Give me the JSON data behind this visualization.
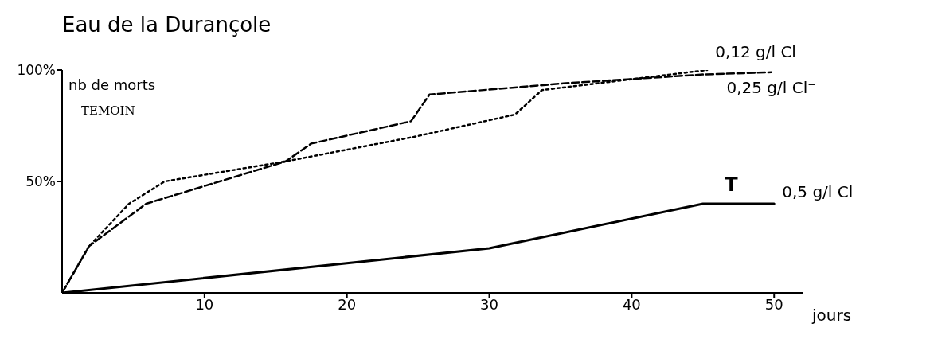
{
  "chart_data": {
    "type": "line",
    "title": "Eau de la Durançole",
    "xlabel": "jours",
    "ylabel": "nb de morts",
    "annotations": [
      "TEMOIN",
      "T"
    ],
    "xlim": [
      0,
      52
    ],
    "xticks": [
      10,
      20,
      30,
      40,
      50
    ],
    "ylim": [
      0,
      100
    ],
    "yticks": [
      {
        "value": 50,
        "label": "50%"
      },
      {
        "value": 100,
        "label": "100%"
      }
    ],
    "marker": "none",
    "series": [
      {
        "name": "0,12 g/l Cl⁻",
        "color": "#000000",
        "line_style": "dotted",
        "x": [
          0,
          1.9,
          4.7,
          7.2,
          15.7,
          24.7,
          31.8,
          33.7,
          45.3
        ],
        "values": [
          0,
          21,
          40,
          50,
          59,
          70,
          80,
          91,
          100
        ]
      },
      {
        "name": "0,25 g/l Cl⁻",
        "color": "#000000",
        "line_style": "dashed",
        "x": [
          0,
          1.9,
          5.9,
          15.7,
          17.5,
          24.5,
          25.8,
          35.2,
          45,
          49.8
        ],
        "values": [
          0,
          21,
          40,
          59,
          67,
          77,
          89,
          94,
          98,
          99
        ]
      },
      {
        "name": "0,5 g/l Cl⁻",
        "color": "#000000",
        "line_style": "solid",
        "x": [
          0,
          30,
          45,
          50
        ],
        "values": [
          0,
          20,
          40,
          40
        ]
      }
    ]
  }
}
